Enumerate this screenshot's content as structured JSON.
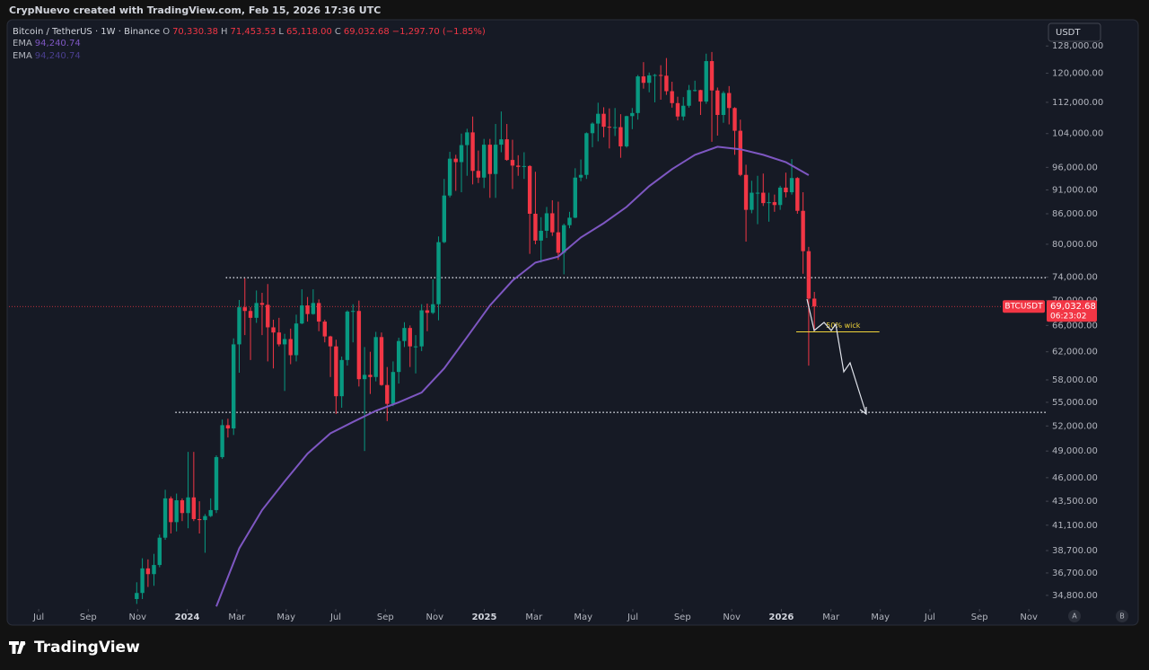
{
  "header": "CrypNuevo created with TradingView.com, Feb 15, 2026 17:36 UTC",
  "brand": "TradingView",
  "currency_button": "USDT",
  "scale_buttons": [
    "A",
    "B"
  ],
  "chart_data": {
    "type": "candlestick",
    "title": "Bitcoin / TetherUS · 1W · Binance",
    "ohlc_legend": [
      {
        "label": "O",
        "value": "70,330.38"
      },
      {
        "label": "H",
        "value": "71,453.53"
      },
      {
        "label": "L",
        "value": "65,118.00"
      },
      {
        "label": "C",
        "value": "69,032.68"
      }
    ],
    "change": "−1,297.70 (−1.85%)",
    "indicators": [
      {
        "name": "EMA",
        "value": "94,240.74",
        "color": "#7e57c2"
      },
      {
        "name": "EMA",
        "value": "94,240.74",
        "color": "#4a3f8f"
      }
    ],
    "log": true,
    "grid": false,
    "up_color": "#089981",
    "down_color": "#f23645",
    "xlim": [
      2023.4,
      2026.89
    ],
    "ylim": [
      33700,
      136800
    ],
    "xticks": [
      {
        "value": 2023.5,
        "label": "Jul"
      },
      {
        "value": 2023.667,
        "label": "Sep"
      },
      {
        "value": 2023.833,
        "label": "Nov"
      },
      {
        "value": 2024,
        "label": "2024"
      },
      {
        "value": 2024.167,
        "label": "Mar"
      },
      {
        "value": 2024.333,
        "label": "May"
      },
      {
        "value": 2024.5,
        "label": "Jul"
      },
      {
        "value": 2024.667,
        "label": "Sep"
      },
      {
        "value": 2024.833,
        "label": "Nov"
      },
      {
        "value": 2025,
        "label": "2025"
      },
      {
        "value": 2025.167,
        "label": "Mar"
      },
      {
        "value": 2025.333,
        "label": "May"
      },
      {
        "value": 2025.5,
        "label": "Jul"
      },
      {
        "value": 2025.667,
        "label": "Sep"
      },
      {
        "value": 2025.833,
        "label": "Nov"
      },
      {
        "value": 2026,
        "label": "2026"
      },
      {
        "value": 2026.167,
        "label": "Mar"
      },
      {
        "value": 2026.333,
        "label": "May"
      },
      {
        "value": 2026.5,
        "label": "Jul"
      },
      {
        "value": 2026.667,
        "label": "Sep"
      },
      {
        "value": 2026.833,
        "label": "Nov"
      }
    ],
    "yticks": [
      {
        "value": 128000,
        "label": "128,000.00"
      },
      {
        "value": 120000,
        "label": "120,000.00"
      },
      {
        "value": 112000,
        "label": "112,000.00"
      },
      {
        "value": 104000,
        "label": "104,000.00"
      },
      {
        "value": 96000,
        "label": "96,000.00"
      },
      {
        "value": 91000,
        "label": "91,000.00"
      },
      {
        "value": 86000,
        "label": "86,000.00"
      },
      {
        "value": 80000,
        "label": "80,000.00"
      },
      {
        "value": 74000,
        "label": "74,000.00"
      },
      {
        "value": 70000,
        "label": "70,000.00"
      },
      {
        "value": 66000,
        "label": "66,000.00"
      },
      {
        "value": 62000,
        "label": "62,000.00"
      },
      {
        "value": 58000,
        "label": "58,000.00"
      },
      {
        "value": 55000,
        "label": "55,000.00"
      },
      {
        "value": 52000,
        "label": "52,000.00"
      },
      {
        "value": 49000,
        "label": "49,000.00"
      },
      {
        "value": 46000,
        "label": "46,000.00"
      },
      {
        "value": 43500,
        "label": "43,500.00"
      },
      {
        "value": 41100,
        "label": "41,100.00"
      },
      {
        "value": 38700,
        "label": "38,700.00"
      },
      {
        "value": 36700,
        "label": "36,700.00"
      },
      {
        "value": 34800,
        "label": "34,800.00"
      }
    ],
    "x": [
      2023.83,
      2023.849,
      2023.868,
      2023.888,
      2023.907,
      2023.926,
      2023.945,
      2023.964,
      2023.983,
      2024.003,
      2024.022,
      2024.041,
      2024.06,
      2024.079,
      2024.098,
      2024.118,
      2024.137,
      2024.156,
      2024.175,
      2024.194,
      2024.213,
      2024.233,
      2024.252,
      2024.271,
      2024.29,
      2024.309,
      2024.328,
      2024.348,
      2024.367,
      2024.386,
      2024.405,
      2024.424,
      2024.443,
      2024.463,
      2024.482,
      2024.501,
      2024.52,
      2024.539,
      2024.558,
      2024.578,
      2024.597,
      2024.616,
      2024.635,
      2024.654,
      2024.673,
      2024.693,
      2024.712,
      2024.731,
      2024.75,
      2024.769,
      2024.789,
      2024.808,
      2024.827,
      2024.846,
      2024.865,
      2024.884,
      2024.904,
      2024.923,
      2024.942,
      2024.961,
      2024.98,
      2024.999,
      2025.019,
      2025.038,
      2025.057,
      2025.076,
      2025.095,
      2025.114,
      2025.134,
      2025.153,
      2025.172,
      2025.191,
      2025.21,
      2025.229,
      2025.249,
      2025.268,
      2025.287,
      2025.306,
      2025.325,
      2025.344,
      2025.364,
      2025.383,
      2025.402,
      2025.421,
      2025.44,
      2025.459,
      2025.479,
      2025.498,
      2025.517,
      2025.536,
      2025.555,
      2025.574,
      2025.594,
      2025.613,
      2025.632,
      2025.651,
      2025.67,
      2025.689,
      2025.709,
      2025.728,
      2025.747,
      2025.766,
      2025.785,
      2025.805,
      2025.824,
      2025.843,
      2025.862,
      2025.881,
      2025.9,
      2025.92,
      2025.939,
      2025.958,
      2025.977,
      2025.996,
      2026.015,
      2026.035,
      2026.054,
      2026.073,
      2026.092,
      2026.111
    ],
    "open": [
      34500,
      35000,
      37100,
      36600,
      37400,
      39900,
      43800,
      41400,
      43600,
      42300,
      43900,
      41700,
      41600,
      42000,
      42600,
      48300,
      52100,
      51700,
      63100,
      68900,
      68300,
      67200,
      69600,
      69300,
      65700,
      64900,
      63100,
      63900,
      61500,
      66300,
      69200,
      67800,
      69600,
      66600,
      64300,
      62800,
      55800,
      60800,
      68200,
      68300,
      58100,
      58700,
      58400,
      64200,
      57300,
      54800,
      59100,
      63600,
      65600,
      62800,
      62800,
      68400,
      68000,
      69400,
      80400,
      89800,
      98000,
      97200,
      101200,
      104300,
      95200,
      93700,
      101300,
      94500,
      101300,
      102600,
      97700,
      96400,
      96100,
      96300,
      86000,
      80700,
      82600,
      86100,
      82300,
      78400,
      83700,
      85200,
      93700,
      94300,
      104100,
      106500,
      109000,
      105700,
      105600,
      105600,
      100900,
      108400,
      109200,
      119100,
      117300,
      119400,
      119500,
      119300,
      115000,
      111800,
      108300,
      111100,
      115300,
      115300,
      112200,
      123500,
      115200,
      108700,
      114500,
      110500,
      104700,
      94300,
      86800,
      90400,
      90400,
      88200,
      88400,
      87800,
      91500,
      90500,
      93600,
      86600,
      78700,
      70330.38
    ],
    "high": [
      35900,
      38000,
      37900,
      38400,
      40200,
      44700,
      44000,
      44300,
      43800,
      48900,
      48900,
      43500,
      42200,
      43800,
      48500,
      52800,
      52900,
      64000,
      70100,
      73800,
      68900,
      71700,
      71300,
      72800,
      66900,
      67200,
      64700,
      65500,
      67700,
      71900,
      70600,
      71900,
      70200,
      66900,
      64400,
      63800,
      61300,
      68400,
      69400,
      70000,
      62700,
      62000,
      65000,
      64900,
      59800,
      60600,
      64100,
      66500,
      66000,
      64500,
      69400,
      69500,
      73600,
      81500,
      93400,
      99600,
      98900,
      104000,
      105200,
      108300,
      99900,
      102700,
      102700,
      106400,
      109600,
      106400,
      102500,
      98800,
      99500,
      96500,
      95000,
      85300,
      87400,
      88800,
      88500,
      84000,
      86400,
      95800,
      97800,
      104300,
      106800,
      111900,
      110700,
      110400,
      110500,
      108900,
      108500,
      110500,
      119500,
      123200,
      120200,
      119800,
      122300,
      124400,
      117600,
      113500,
      113400,
      116700,
      117900,
      115400,
      125700,
      126200,
      116000,
      115000,
      116400,
      110700,
      107500,
      96600,
      93000,
      94100,
      94600,
      90400,
      90000,
      91900,
      94800,
      97900,
      93800,
      90500,
      79500,
      71453.53
    ],
    "low": [
      34100,
      34500,
      35500,
      35600,
      37200,
      39700,
      40300,
      40500,
      41500,
      40800,
      41500,
      40300,
      38500,
      41900,
      42300,
      48100,
      50600,
      50900,
      59000,
      64500,
      60800,
      66400,
      64500,
      60600,
      59600,
      62800,
      56500,
      60200,
      60600,
      66200,
      66600,
      67700,
      65100,
      63400,
      58400,
      53500,
      54300,
      60000,
      63400,
      57100,
      49000,
      56100,
      57800,
      57200,
      52600,
      54500,
      57500,
      62700,
      59800,
      58900,
      62100,
      65100,
      67800,
      66800,
      80200,
      89400,
      90800,
      90500,
      94100,
      92200,
      92500,
      91400,
      89300,
      89300,
      99500,
      97500,
      91200,
      94100,
      93400,
      78200,
      80000,
      76600,
      81200,
      81600,
      77100,
      74500,
      83100,
      85100,
      92900,
      93400,
      100700,
      102100,
      103100,
      100400,
      103400,
      98200,
      100600,
      105100,
      107500,
      115700,
      114700,
      112000,
      112700,
      114000,
      110600,
      107300,
      107300,
      110600,
      114900,
      108700,
      111600,
      102000,
      103500,
      106700,
      106300,
      98900,
      94000,
      80500,
      86100,
      83900,
      87600,
      84400,
      86400,
      86800,
      89400,
      90000,
      86000,
      74600,
      60000,
      65118
    ],
    "close": [
      35000,
      37100,
      36600,
      37400,
      39900,
      43800,
      41400,
      43600,
      42300,
      43900,
      41700,
      41600,
      42000,
      42600,
      48300,
      52100,
      51700,
      63100,
      68900,
      68300,
      67200,
      69600,
      69300,
      65700,
      64900,
      63100,
      63900,
      61500,
      66300,
      69200,
      67800,
      69600,
      66600,
      64300,
      62800,
      55800,
      60800,
      68200,
      68300,
      58100,
      58700,
      58400,
      64200,
      57300,
      54800,
      59100,
      63600,
      65600,
      62800,
      62800,
      68400,
      68000,
      69400,
      80400,
      89800,
      98000,
      97200,
      101200,
      104300,
      95200,
      93700,
      101300,
      94500,
      101300,
      102600,
      97700,
      96400,
      96100,
      96300,
      86000,
      80700,
      82600,
      86100,
      82300,
      78400,
      83700,
      85200,
      93700,
      94300,
      104100,
      106500,
      109000,
      105700,
      105600,
      105600,
      100900,
      108400,
      109200,
      119100,
      117300,
      119400,
      119500,
      119300,
      115000,
      111800,
      108300,
      111100,
      115300,
      115300,
      112200,
      123500,
      115200,
      108700,
      114500,
      110500,
      104700,
      94300,
      86800,
      90400,
      90400,
      88200,
      88400,
      87800,
      91500,
      90500,
      93600,
      86600,
      78700,
      70330.38,
      69032.68
    ],
    "ema": {
      "name": "EMA",
      "color": "#7e57c2",
      "x": [
        2024.098,
        2024.175,
        2024.252,
        2024.328,
        2024.405,
        2024.482,
        2024.558,
        2024.635,
        2024.712,
        2024.789,
        2024.865,
        2024.942,
        2025.019,
        2025.095,
        2025.172,
        2025.249,
        2025.325,
        2025.402,
        2025.479,
        2025.555,
        2025.632,
        2025.709,
        2025.785,
        2025.862,
        2025.939,
        2026.015,
        2026.092
      ],
      "values": [
        33900,
        38900,
        42600,
        45600,
        48700,
        51100,
        52500,
        53900,
        55000,
        56300,
        59600,
        64200,
        69200,
        73400,
        76600,
        77700,
        81300,
        84100,
        87400,
        91800,
        95600,
        98900,
        100800,
        100200,
        98900,
        97200,
        94240.74
      ]
    },
    "levels": [
      {
        "value": 73900,
        "x_start": 2024.13
      },
      {
        "value": 53700,
        "x_start": 2023.96
      }
    ],
    "annotation": {
      "text": "50% wick",
      "value": 65000,
      "x": [
        2026.05,
        2026.33
      ],
      "color": "#f0d43a"
    },
    "price_tag": {
      "symbol": "BTCUSDT",
      "price": "69,032.68",
      "countdown": "06:23:02"
    }
  }
}
